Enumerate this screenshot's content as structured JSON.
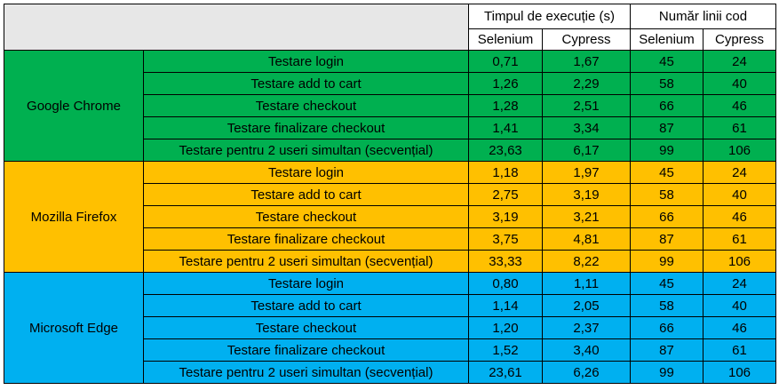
{
  "header": {
    "time_group": "Timpul de execuție (s)",
    "lines_group": "Număr linii cod",
    "time_cols": [
      "Selenium",
      "Cypress"
    ],
    "lines_cols": [
      "Selenium",
      "Cypress"
    ]
  },
  "colors": {
    "chrome": "#00b050",
    "firefox": "#ffc000",
    "edge": "#00b0f0",
    "corner": "#e7e7e7"
  },
  "browsers": [
    {
      "name": "Google Chrome",
      "rows": [
        {
          "test": "Testare login",
          "time_selenium": "0,71",
          "time_cypress": "1,67",
          "lines_selenium": "45",
          "lines_cypress": "24"
        },
        {
          "test": "Testare add to cart",
          "time_selenium": "1,26",
          "time_cypress": "2,29",
          "lines_selenium": "58",
          "lines_cypress": "40"
        },
        {
          "test": "Testare checkout",
          "time_selenium": "1,28",
          "time_cypress": "2,51",
          "lines_selenium": "66",
          "lines_cypress": "46"
        },
        {
          "test": "Testare finalizare checkout",
          "time_selenium": "1,41",
          "time_cypress": "3,34",
          "lines_selenium": "87",
          "lines_cypress": "61"
        },
        {
          "test": "Testare pentru 2 useri simultan (secvențial)",
          "time_selenium": "23,63",
          "time_cypress": "6,17",
          "lines_selenium": "99",
          "lines_cypress": "106"
        }
      ]
    },
    {
      "name": "Mozilla Firefox",
      "rows": [
        {
          "test": "Testare login",
          "time_selenium": "1,18",
          "time_cypress": "1,97",
          "lines_selenium": "45",
          "lines_cypress": "24"
        },
        {
          "test": "Testare add to cart",
          "time_selenium": "2,75",
          "time_cypress": "3,19",
          "lines_selenium": "58",
          "lines_cypress": "40"
        },
        {
          "test": "Testare checkout",
          "time_selenium": "3,19",
          "time_cypress": "3,21",
          "lines_selenium": "66",
          "lines_cypress": "46"
        },
        {
          "test": "Testare finalizare checkout",
          "time_selenium": "3,75",
          "time_cypress": "4,81",
          "lines_selenium": "87",
          "lines_cypress": "61"
        },
        {
          "test": "Testare pentru 2 useri simultan (secvențial)",
          "time_selenium": "33,33",
          "time_cypress": "8,22",
          "lines_selenium": "99",
          "lines_cypress": "106"
        }
      ]
    },
    {
      "name": "Microsoft Edge",
      "rows": [
        {
          "test": "Testare login",
          "time_selenium": "0,80",
          "time_cypress": "1,11",
          "lines_selenium": "45",
          "lines_cypress": "24"
        },
        {
          "test": "Testare add to cart",
          "time_selenium": "1,14",
          "time_cypress": "2,05",
          "lines_selenium": "58",
          "lines_cypress": "40"
        },
        {
          "test": "Testare checkout",
          "time_selenium": "1,20",
          "time_cypress": "2,37",
          "lines_selenium": "66",
          "lines_cypress": "46"
        },
        {
          "test": "Testare finalizare checkout",
          "time_selenium": "1,52",
          "time_cypress": "3,40",
          "lines_selenium": "87",
          "lines_cypress": "61"
        },
        {
          "test": "Testare pentru 2 useri simultan (secvențial)",
          "time_selenium": "23,61",
          "time_cypress": "6,26",
          "lines_selenium": "99",
          "lines_cypress": "106"
        }
      ]
    }
  ]
}
